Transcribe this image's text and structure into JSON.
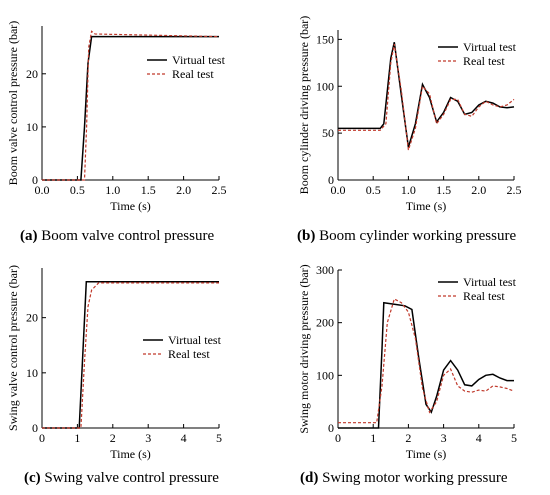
{
  "colors": {
    "virtual": "#000000",
    "real": "#c0392b",
    "axis": "#000000"
  },
  "captions": [
    {
      "tag": "(a)",
      "text": " Boom valve control pressure"
    },
    {
      "tag": "(b)",
      "text": " Boom cylinder working pressure"
    },
    {
      "tag": "(c)",
      "text": " Swing valve control pressure"
    },
    {
      "tag": "(d)",
      "text": " Swing motor working pressure"
    }
  ],
  "chart_data": [
    {
      "type": "line",
      "xlabel": "Time (s)",
      "ylabel": "Boom valve control pressure (bar)",
      "xlim": [
        0,
        2.5
      ],
      "ylim": [
        0,
        29
      ],
      "xticks": [
        "0.0",
        "0.5",
        "1.0",
        "1.5",
        "2.0",
        "2.5"
      ],
      "xtick_values": [
        0,
        0.5,
        1.0,
        1.5,
        2.0,
        2.5
      ],
      "yticks": [
        "0",
        "10",
        "20"
      ],
      "ytick_values": [
        0,
        10,
        20
      ],
      "legend": "top-right",
      "series": [
        {
          "name": "Virtual test",
          "style": "solid",
          "x": [
            0,
            0.55,
            0.6,
            0.65,
            0.7,
            2.5
          ],
          "y": [
            0,
            0,
            10,
            22,
            27,
            27
          ]
        },
        {
          "name": "Real test",
          "style": "dashed",
          "x": [
            0,
            0.6,
            0.63,
            0.66,
            0.7,
            0.75,
            2.5
          ],
          "y": [
            0,
            0,
            10,
            25,
            28,
            27.5,
            27
          ]
        }
      ]
    },
    {
      "type": "line",
      "xlabel": "Time (s)",
      "ylabel": "Boom cylinder driving pressure (bar)",
      "xlim": [
        0,
        2.5
      ],
      "ylim": [
        0,
        160
      ],
      "xticks": [
        "0.0",
        "0.5",
        "1.0",
        "1.5",
        "2.0",
        "2.5"
      ],
      "xtick_values": [
        0,
        0.5,
        1.0,
        1.5,
        2.0,
        2.5
      ],
      "yticks": [
        "0",
        "50",
        "100",
        "150"
      ],
      "ytick_values": [
        0,
        50,
        100,
        150
      ],
      "legend": "top-right",
      "series": [
        {
          "name": "Virtual test",
          "style": "solid",
          "x": [
            0,
            0.6,
            0.65,
            0.75,
            0.8,
            0.9,
            1.0,
            1.1,
            1.2,
            1.3,
            1.4,
            1.5,
            1.6,
            1.7,
            1.8,
            1.9,
            2.0,
            2.1,
            2.2,
            2.3,
            2.4,
            2.5
          ],
          "y": [
            55,
            55,
            60,
            130,
            147,
            90,
            35,
            60,
            102,
            88,
            62,
            72,
            88,
            84,
            70,
            72,
            80,
            84,
            82,
            78,
            77,
            78
          ]
        },
        {
          "name": "Real test",
          "style": "dashed",
          "x": [
            0,
            0.6,
            0.68,
            0.75,
            0.8,
            0.9,
            1.0,
            1.1,
            1.2,
            1.3,
            1.4,
            1.5,
            1.6,
            1.7,
            1.8,
            1.9,
            2.0,
            2.1,
            2.2,
            2.3,
            2.4,
            2.5
          ],
          "y": [
            53,
            53,
            60,
            125,
            145,
            95,
            32,
            55,
            100,
            92,
            60,
            70,
            86,
            86,
            70,
            68,
            78,
            84,
            80,
            78,
            80,
            86
          ]
        }
      ]
    },
    {
      "type": "line",
      "xlabel": "Time (s)",
      "ylabel": "Swing valve control pressure (bar)",
      "xlim": [
        0,
        5
      ],
      "ylim": [
        0,
        29
      ],
      "xticks": [
        "0",
        "1",
        "2",
        "3",
        "4",
        "5"
      ],
      "xtick_values": [
        0,
        1,
        2,
        3,
        4,
        5
      ],
      "yticks": [
        "0",
        "10",
        "20"
      ],
      "ytick_values": [
        0,
        10,
        20
      ],
      "legend": "middle-right",
      "series": [
        {
          "name": "Virtual test",
          "style": "solid",
          "x": [
            0,
            1.05,
            1.15,
            1.25,
            5
          ],
          "y": [
            0,
            0,
            13,
            26.5,
            26.5
          ]
        },
        {
          "name": "Real test",
          "style": "dashed",
          "x": [
            0,
            1.1,
            1.2,
            1.3,
            1.4,
            1.6,
            5
          ],
          "y": [
            0,
            0,
            12,
            22,
            25,
            26.3,
            26.3
          ]
        }
      ]
    },
    {
      "type": "line",
      "xlabel": "Time (s)",
      "ylabel": "Swing motor driving pressure (bar)",
      "xlim": [
        0,
        5
      ],
      "ylim": [
        0,
        300
      ],
      "xticks": [
        "0",
        "1",
        "2",
        "3",
        "4",
        "5"
      ],
      "xtick_values": [
        0,
        1,
        2,
        3,
        4,
        5
      ],
      "yticks": [
        "0",
        "100",
        "200",
        "300"
      ],
      "ytick_values": [
        0,
        100,
        200,
        300
      ],
      "legend": "top-right",
      "series": [
        {
          "name": "Virtual test",
          "style": "solid",
          "x": [
            0,
            1.15,
            1.25,
            1.3,
            1.6,
            1.9,
            2.1,
            2.3,
            2.5,
            2.65,
            2.8,
            3.0,
            3.2,
            3.4,
            3.6,
            3.8,
            4.0,
            4.2,
            4.4,
            4.6,
            4.8,
            5.0
          ],
          "y": [
            0,
            0,
            150,
            238,
            235,
            232,
            225,
            130,
            45,
            30,
            60,
            110,
            128,
            110,
            82,
            80,
            92,
            100,
            102,
            95,
            90,
            90
          ]
        },
        {
          "name": "Real test",
          "style": "dashed",
          "x": [
            0,
            1.1,
            1.25,
            1.4,
            1.6,
            1.8,
            2.0,
            2.2,
            2.4,
            2.6,
            2.8,
            3.0,
            3.2,
            3.4,
            3.6,
            3.8,
            4.0,
            4.2,
            4.4,
            4.6,
            4.8,
            5.0
          ],
          "y": [
            10,
            10,
            80,
            200,
            245,
            238,
            220,
            170,
            75,
            30,
            50,
            100,
            112,
            80,
            70,
            68,
            72,
            70,
            80,
            78,
            75,
            70
          ]
        }
      ]
    }
  ]
}
